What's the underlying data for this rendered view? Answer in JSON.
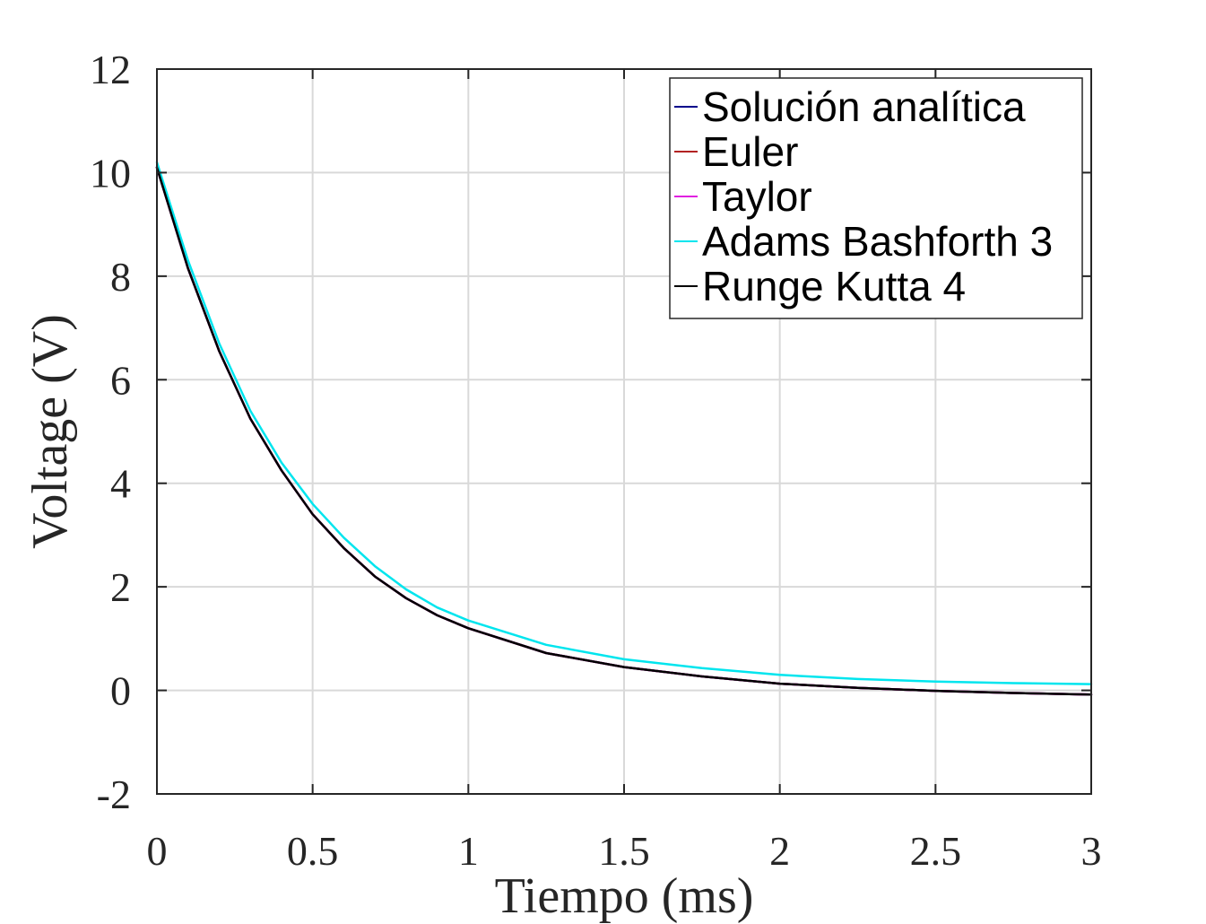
{
  "chart_data": {
    "type": "line",
    "xlabel": "Tiempo (ms)",
    "ylabel": "Voltage (V)",
    "xlim": [
      0,
      3
    ],
    "ylim": [
      -2,
      12
    ],
    "xticks": [
      0,
      0.5,
      1,
      1.5,
      2,
      2.5,
      3
    ],
    "xtick_labels": [
      "0",
      "0.5",
      "1",
      "1.5",
      "2",
      "2.5",
      "3"
    ],
    "yticks": [
      -2,
      0,
      2,
      4,
      6,
      8,
      10,
      12
    ],
    "ytick_labels": [
      "-2",
      "0",
      "2",
      "4",
      "6",
      "8",
      "10",
      "12"
    ],
    "grid": true,
    "legend_position": "top-right",
    "series": [
      {
        "name": "Solución analítica",
        "color": "#00008B",
        "x": [
          0,
          0.1,
          0.2,
          0.3,
          0.4,
          0.5,
          0.6,
          0.7,
          0.8,
          0.9,
          1.0,
          1.25,
          1.5,
          1.75,
          2.0,
          2.25,
          2.5,
          2.75,
          3.0
        ],
        "y": [
          10.1,
          8.15,
          6.55,
          5.25,
          4.25,
          3.4,
          2.75,
          2.2,
          1.78,
          1.45,
          1.2,
          0.72,
          0.45,
          0.27,
          0.13,
          0.05,
          -0.01,
          -0.05,
          -0.08
        ]
      },
      {
        "name": "Euler",
        "color": "#B22222",
        "x": [
          0,
          0.1,
          0.2,
          0.3,
          0.4,
          0.5,
          0.6,
          0.7,
          0.8,
          0.9,
          1.0,
          1.25,
          1.5,
          1.75,
          2.0,
          2.25,
          2.5,
          2.75,
          3.0
        ],
        "y": [
          10.1,
          8.15,
          6.55,
          5.25,
          4.25,
          3.4,
          2.75,
          2.2,
          1.78,
          1.45,
          1.2,
          0.72,
          0.45,
          0.27,
          0.13,
          0.05,
          -0.01,
          -0.05,
          -0.08
        ]
      },
      {
        "name": "Taylor",
        "color": "#E020E0",
        "x": [
          0,
          0.1,
          0.2,
          0.3,
          0.4,
          0.5,
          0.6,
          0.7,
          0.8,
          0.9,
          1.0,
          1.25,
          1.5,
          1.75,
          2.0,
          2.25,
          2.5,
          2.75,
          3.0
        ],
        "y": [
          10.1,
          8.15,
          6.55,
          5.25,
          4.25,
          3.4,
          2.75,
          2.2,
          1.78,
          1.45,
          1.2,
          0.72,
          0.45,
          0.27,
          0.13,
          0.05,
          -0.01,
          -0.05,
          -0.08
        ]
      },
      {
        "name": "Adams Bashforth 3",
        "color": "#00E5EE",
        "x": [
          0,
          0.1,
          0.2,
          0.3,
          0.4,
          0.5,
          0.6,
          0.7,
          0.8,
          0.9,
          1.0,
          1.25,
          1.5,
          1.75,
          2.0,
          2.25,
          2.5,
          2.75,
          3.0
        ],
        "y": [
          10.2,
          8.3,
          6.7,
          5.4,
          4.4,
          3.6,
          2.95,
          2.4,
          1.95,
          1.6,
          1.35,
          0.88,
          0.6,
          0.43,
          0.3,
          0.22,
          0.17,
          0.14,
          0.12
        ]
      },
      {
        "name": "Runge Kutta 4",
        "color": "#000000",
        "x": [
          0,
          0.1,
          0.2,
          0.3,
          0.4,
          0.5,
          0.6,
          0.7,
          0.8,
          0.9,
          1.0,
          1.25,
          1.5,
          1.75,
          2.0,
          2.25,
          2.5,
          2.75,
          3.0
        ],
        "y": [
          10.1,
          8.15,
          6.55,
          5.25,
          4.25,
          3.4,
          2.75,
          2.2,
          1.78,
          1.45,
          1.2,
          0.72,
          0.45,
          0.27,
          0.13,
          0.05,
          -0.01,
          -0.05,
          -0.08
        ]
      }
    ]
  }
}
